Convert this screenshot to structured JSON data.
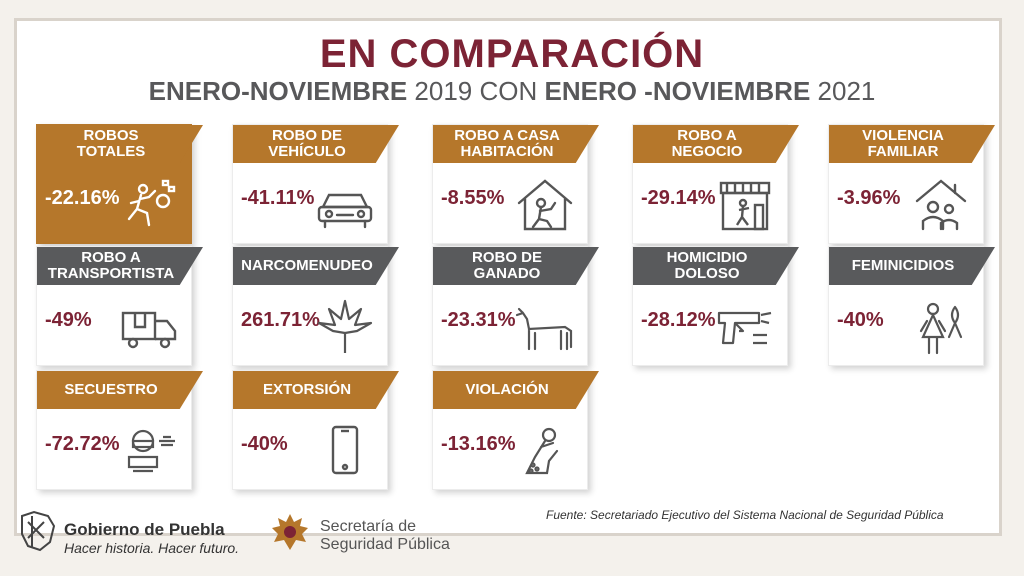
{
  "header": {
    "title": "EN COMPARACIÓN",
    "sub_a": "ENERO-NOVIEMBRE",
    "sub_b": " 2019 CON ",
    "sub_c": "ENERO -NOVIEMBRE",
    "sub_d": " 2021"
  },
  "colors": {
    "gold": "#b5772b",
    "gray": "#595a5c",
    "maroon": "#7c2335"
  },
  "cards": [
    {
      "l1": "ROBOS",
      "l2": "TOTALES",
      "value": "-22.16%",
      "icon": "running-thief-icon"
    },
    {
      "l1": "ROBO DE",
      "l2": "VEHÍCULO",
      "value": "-41.11%",
      "icon": "car-icon"
    },
    {
      "l1": "ROBO A CASA",
      "l2": "HABITACIÓN",
      "value": "-8.55%",
      "icon": "house-burglar-icon"
    },
    {
      "l1": "ROBO A",
      "l2": "NEGOCIO",
      "value": "-29.14%",
      "icon": "store-icon"
    },
    {
      "l1": "VIOLENCIA",
      "l2": "FAMILIAR",
      "value": "-3.96%",
      "icon": "family-house-icon"
    },
    {
      "l1": "ROBO A",
      "l2": "TRANSPORTISTA",
      "value": "-49%",
      "icon": "truck-icon"
    },
    {
      "l1": "NARCOMENUDEO",
      "l2": "",
      "value": "261.71%",
      "icon": "cannabis-leaf-icon"
    },
    {
      "l1": "ROBO DE",
      "l2": "GANADO",
      "value": "-23.31%",
      "icon": "cow-icon"
    },
    {
      "l1": "HOMICIDIO",
      "l2": "DOLOSO",
      "value": "-28.12%",
      "icon": "gun-icon"
    },
    {
      "l1": "FEMINICIDIOS",
      "l2": "",
      "value": "-40%",
      "icon": "woman-ribbon-icon"
    },
    {
      "l1": "SECUESTRO",
      "l2": "",
      "value": "-72.72%",
      "icon": "hostage-icon"
    },
    {
      "l1": "EXTORSIÓN",
      "l2": "",
      "value": "-40%",
      "icon": "phone-icon"
    },
    {
      "l1": "VIOLACIÓN",
      "l2": "",
      "value": "-13.16%",
      "icon": "crying-person-icon"
    }
  ],
  "footer": {
    "source": "Fuente: Secretariado Ejecutivo del Sistema Nacional de Seguridad Pública",
    "gob_name": "Gobierno de Puebla",
    "gob_slogan": "Hacer historia. Hacer futuro.",
    "ssp_line1": "Secretaría de",
    "ssp_line2": "Seguridad Pública"
  }
}
